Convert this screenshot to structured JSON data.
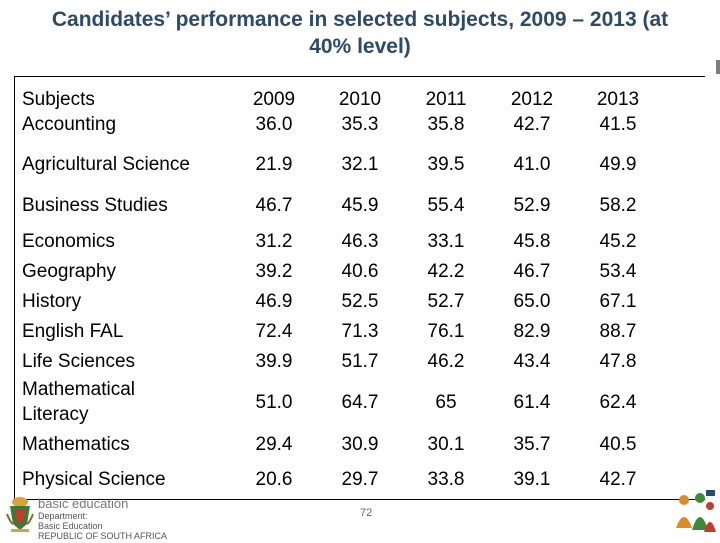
{
  "title": {
    "line1": "Candidates’ performance in selected subjects, 2009 – 2013 (at",
    "line2": "40% level)"
  },
  "table": {
    "header": {
      "subject_label": "Subjects",
      "years": [
        "2009",
        "2010",
        "2011",
        "2012",
        "2013"
      ]
    },
    "rows": [
      {
        "subject": "Accounting",
        "values": [
          "36.0",
          "35.3",
          "35.8",
          "42.7",
          "41.5"
        ]
      },
      {
        "subject": "Agricultural Science",
        "values": [
          "21.9",
          "32.1",
          "39.5",
          "41.0",
          "49.9"
        ]
      },
      {
        "subject": "Business Studies",
        "values": [
          "46.7",
          "45.9",
          "55.4",
          "52.9",
          "58.2"
        ]
      },
      {
        "subject": "Economics",
        "values": [
          "31.2",
          "46.3",
          "33.1",
          "45.8",
          "45.2"
        ]
      },
      {
        "subject": "Geography",
        "values": [
          "39.2",
          "40.6",
          "42.2",
          "46.7",
          "53.4"
        ]
      },
      {
        "subject": "History",
        "values": [
          "46.9",
          "52.5",
          "52.7",
          "65.0",
          "67.1"
        ]
      },
      {
        "subject": "English FAL",
        "values": [
          "72.4",
          "71.3",
          "76.1",
          "82.9",
          "88.7"
        ]
      },
      {
        "subject": "Life Sciences",
        "values": [
          "39.9",
          "51.7",
          "46.2",
          "43.4",
          "47.8"
        ]
      },
      {
        "subject_line1": "Mathematical",
        "subject_line2": "Literacy",
        "values": [
          "51.0",
          "64.7",
          "65",
          "61.4",
          "62.4"
        ]
      },
      {
        "subject": "Mathematics",
        "values": [
          "29.4",
          "30.9",
          "30.1",
          "35.7",
          "40.5"
        ]
      },
      {
        "subject": "Physical Science",
        "values": [
          "20.6",
          "29.7",
          "33.8",
          "39.1",
          "42.7"
        ]
      }
    ]
  },
  "footer": {
    "brand": "basic education",
    "dept_line1": "Department:",
    "dept_line2": "Basic Education",
    "dept_line3": "REPUBLIC OF SOUTH AFRICA",
    "page_number": "72"
  }
}
